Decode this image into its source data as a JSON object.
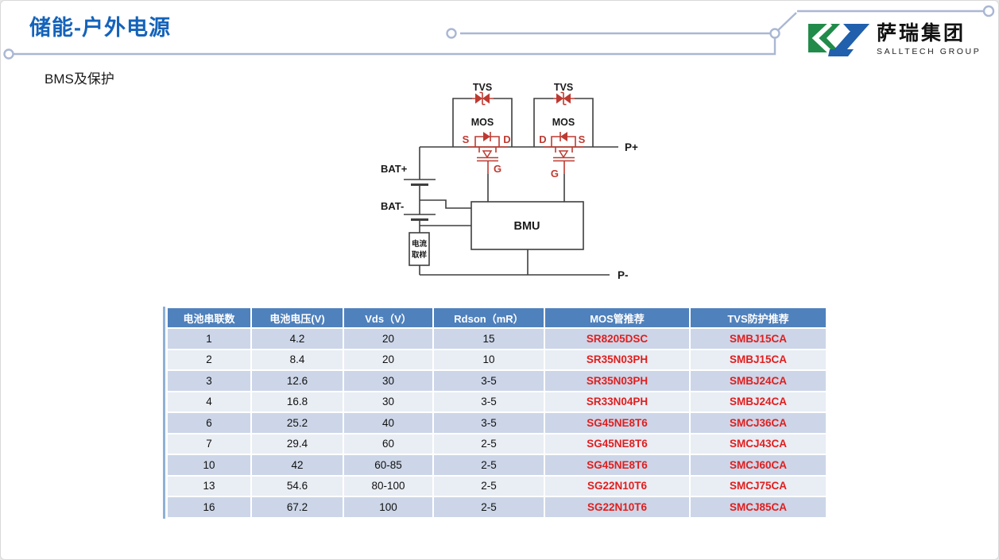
{
  "page": {
    "title": "储能-户外电源",
    "subtitle": "BMS及保护"
  },
  "logo": {
    "name": "萨瑞集团",
    "subname": "SALLTECH GROUP"
  },
  "colors": {
    "title_blue": "#1463BA",
    "deco_line": "#AAB7D4",
    "header_bg": "#4F81BD",
    "band_dark": "#CCD6E8",
    "band_light": "#E9EDF4",
    "table_red": "#E01E1E",
    "table_border_blue": "#8FB0D6",
    "circuit_red": "#BE3A31",
    "circuit_line": "#3F3F3F",
    "logo_green": "#218B4A",
    "logo_blue": "#2060AC"
  },
  "diagram": {
    "labels": {
      "tvs1": "TVS",
      "tvs2": "TVS",
      "mos1": "MOS",
      "mos2": "MOS",
      "s1": "S",
      "d1": "D",
      "d2": "D",
      "s2": "S",
      "g1": "G",
      "g2": "G",
      "bat_plus": "BAT+",
      "bat_minus": "BAT-",
      "bmu": "BMU",
      "sampling_line1": "电流",
      "sampling_line2": "取样",
      "p_plus": "P+",
      "p_minus": "P-"
    }
  },
  "table": {
    "headers": [
      "电池串联数",
      "电池电压(V)",
      "Vds（V）",
      "Rdson（mR）",
      "MOS管推荐",
      "TVS防护推荐"
    ],
    "rows": [
      [
        "1",
        "4.2",
        "20",
        "15",
        "SR8205DSC",
        "SMBJ15CA"
      ],
      [
        "2",
        "8.4",
        "20",
        "10",
        "SR35N03PH",
        "SMBJ15CA"
      ],
      [
        "3",
        "12.6",
        "30",
        "3-5",
        "SR35N03PH",
        "SMBJ24CA"
      ],
      [
        "4",
        "16.8",
        "30",
        "3-5",
        "SR33N04PH",
        "SMBJ24CA"
      ],
      [
        "6",
        "25.2",
        "40",
        "3-5",
        "SG45NE8T6",
        "SMCJ36CA"
      ],
      [
        "7",
        "29.4",
        "60",
        "2-5",
        "SG45NE8T6",
        "SMCJ43CA"
      ],
      [
        "10",
        "42",
        "60-85",
        "2-5",
        "SG45NE8T6",
        "SMCJ60CA"
      ],
      [
        "13",
        "54.6",
        "80-100",
        "2-5",
        "SG22N10T6",
        "SMCJ75CA"
      ],
      [
        "16",
        "67.2",
        "100",
        "2-5",
        "SG22N10T6",
        "SMCJ85CA"
      ]
    ]
  }
}
